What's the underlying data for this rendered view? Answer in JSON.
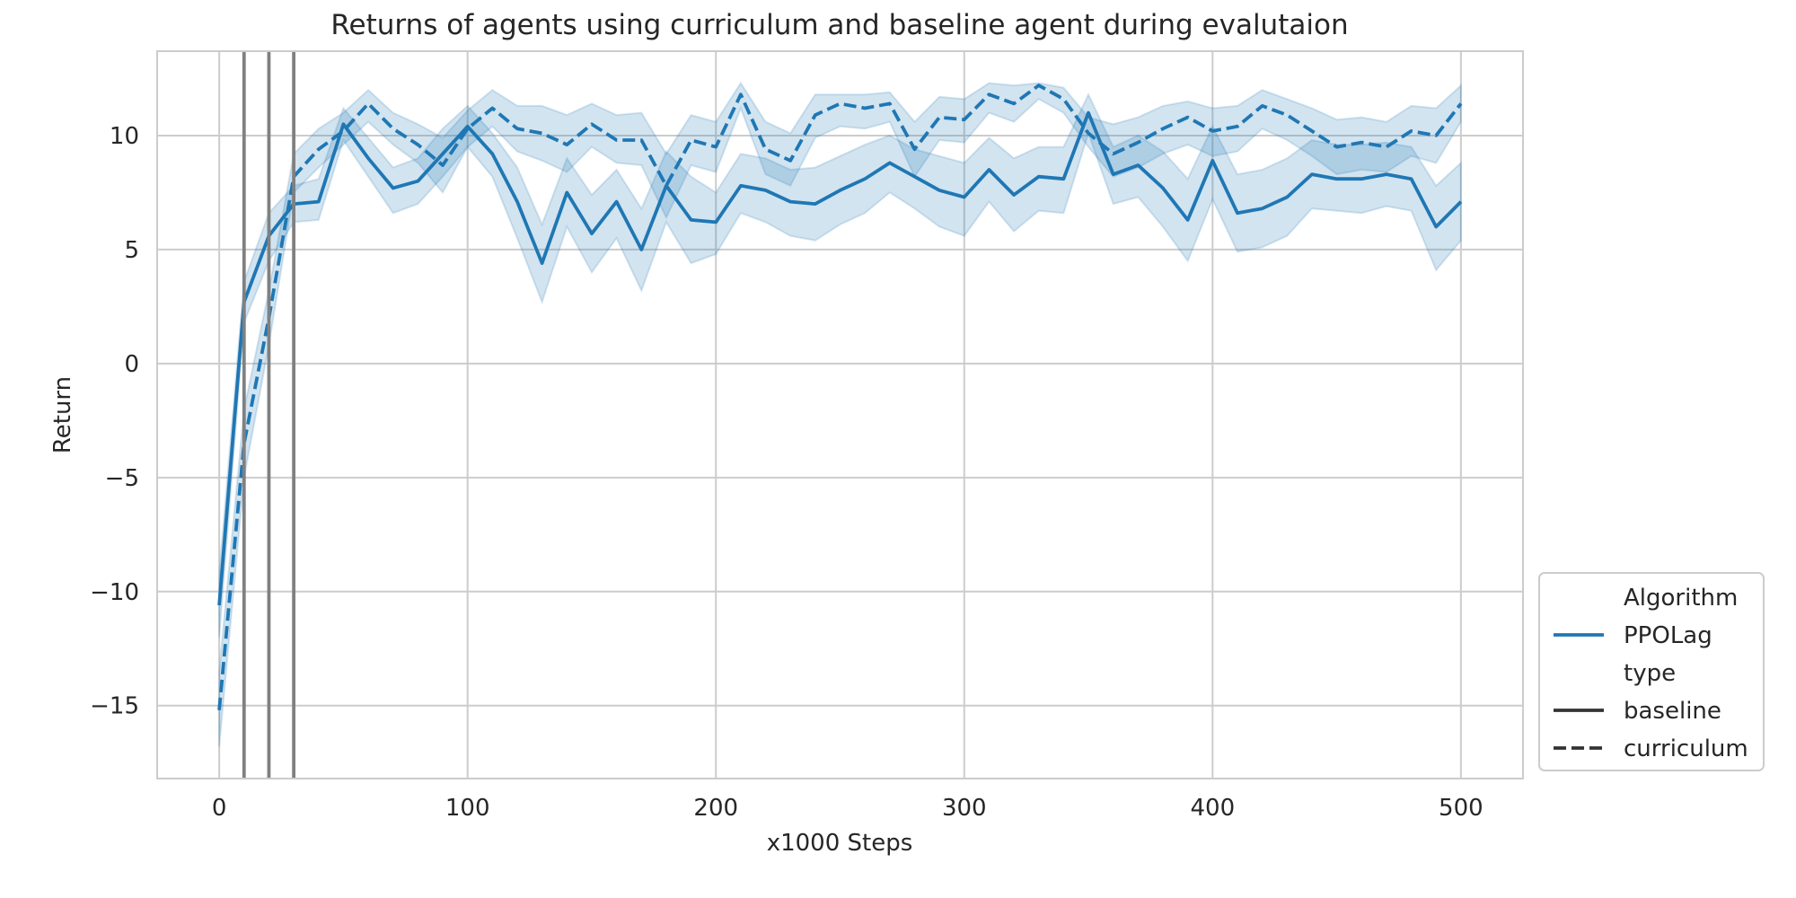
{
  "chart_data": {
    "type": "line",
    "title": "Returns of agents using curriculum and baseline agent during evalutaion",
    "xlabel": "x1000 Steps",
    "ylabel": "Return",
    "xlim": [
      -25,
      525
    ],
    "ylim": [
      -18.2,
      13.7
    ],
    "xticks": [
      0,
      100,
      200,
      300,
      400,
      500
    ],
    "yticks": [
      -15,
      -10,
      -5,
      0,
      5,
      10
    ],
    "tick_labels_x": [
      "0",
      "100",
      "200",
      "300",
      "400",
      "500"
    ],
    "tick_labels_y": [
      "−15",
      "−10",
      "−5",
      "0",
      "5",
      "10"
    ],
    "grid": true,
    "vertical_lines": [
      10,
      20,
      30
    ],
    "vertical_line_color": "#808080",
    "line_color": "#1f77b4",
    "legend": {
      "placement": "lower-right",
      "entries": [
        {
          "kind": "header",
          "text": "Algorithm"
        },
        {
          "kind": "line",
          "style": "solid",
          "color": "#1f77b4",
          "text": "PPOLag"
        },
        {
          "kind": "header",
          "text": "type"
        },
        {
          "kind": "line",
          "style": "solid",
          "color": "#333333",
          "text": "baseline"
        },
        {
          "kind": "line",
          "style": "dashed",
          "color": "#333333",
          "text": "curriculum"
        }
      ]
    },
    "x": [
      0,
      10,
      20,
      30,
      40,
      50,
      60,
      70,
      80,
      90,
      100,
      110,
      120,
      130,
      140,
      150,
      160,
      170,
      180,
      190,
      200,
      210,
      220,
      230,
      240,
      250,
      260,
      270,
      280,
      290,
      300,
      310,
      320,
      330,
      340,
      350,
      360,
      370,
      380,
      390,
      400,
      410,
      420,
      430,
      440,
      450,
      460,
      470,
      480,
      490,
      500
    ],
    "series": [
      {
        "name": "baseline",
        "style": "solid",
        "values": [
          -10.6,
          2.7,
          5.6,
          7.0,
          7.1,
          10.5,
          9.0,
          7.7,
          8.0,
          9.2,
          10.4,
          9.2,
          7.1,
          4.4,
          7.5,
          5.7,
          7.1,
          5.0,
          7.8,
          6.3,
          6.2,
          7.8,
          7.6,
          7.1,
          7.0,
          7.6,
          8.1,
          8.8,
          8.2,
          7.6,
          7.3,
          8.5,
          7.4,
          8.2,
          8.1,
          11.0,
          8.3,
          8.7,
          7.7,
          6.3,
          8.9,
          6.6,
          6.8,
          7.3,
          8.3,
          8.1,
          8.1,
          8.3,
          8.1,
          6.0,
          7.1
        ],
        "lower": [
          -12.0,
          1.8,
          4.5,
          6.2,
          6.3,
          9.8,
          8.2,
          6.6,
          7.0,
          8.2,
          9.5,
          8.2,
          5.5,
          2.7,
          6.0,
          4.0,
          5.5,
          3.2,
          6.2,
          4.4,
          4.8,
          6.6,
          6.2,
          5.6,
          5.4,
          6.1,
          6.6,
          7.5,
          6.8,
          6.0,
          5.6,
          7.1,
          5.8,
          6.7,
          6.6,
          10.1,
          7.0,
          7.3,
          6.0,
          4.5,
          7.2,
          4.9,
          5.1,
          5.6,
          6.8,
          6.7,
          6.6,
          6.9,
          6.7,
          4.1,
          5.4
        ],
        "upper": [
          -9.2,
          3.6,
          6.6,
          7.8,
          8.1,
          11.2,
          9.9,
          8.6,
          9.0,
          10.3,
          11.3,
          10.1,
          8.6,
          6.1,
          9.0,
          7.4,
          8.5,
          6.8,
          9.3,
          8.2,
          7.5,
          9.2,
          9.0,
          8.5,
          8.6,
          9.1,
          9.6,
          10.0,
          9.4,
          9.1,
          8.8,
          9.9,
          9.0,
          9.5,
          9.5,
          11.8,
          9.5,
          10.0,
          9.3,
          8.1,
          10.4,
          8.3,
          8.5,
          9.0,
          9.8,
          9.6,
          9.6,
          9.7,
          9.5,
          7.8,
          8.8
        ]
      },
      {
        "name": "curriculum",
        "style": "dashed",
        "values": [
          -15.2,
          -3.5,
          2.0,
          8.2,
          9.4,
          10.2,
          11.4,
          10.3,
          9.6,
          8.7,
          10.3,
          11.2,
          10.3,
          10.1,
          9.6,
          10.5,
          9.8,
          9.8,
          7.8,
          9.8,
          9.5,
          11.8,
          9.4,
          8.9,
          10.9,
          11.4,
          11.2,
          11.4,
          9.4,
          10.8,
          10.7,
          11.8,
          11.4,
          12.2,
          11.6,
          10.1,
          9.2,
          9.7,
          10.3,
          10.8,
          10.2,
          10.4,
          11.3,
          10.9,
          10.2,
          9.5,
          9.7,
          9.5,
          10.2,
          10.0,
          11.4
        ],
        "lower": [
          -16.8,
          -5.0,
          0.8,
          7.5,
          8.6,
          9.6,
          10.6,
          9.6,
          8.8,
          7.5,
          9.5,
          10.4,
          9.3,
          8.9,
          8.4,
          9.5,
          8.8,
          8.7,
          6.4,
          8.7,
          8.4,
          11.2,
          8.3,
          7.8,
          9.9,
          10.4,
          10.3,
          10.6,
          8.2,
          9.8,
          9.7,
          11.0,
          10.6,
          11.6,
          11.0,
          9.5,
          8.2,
          8.6,
          9.2,
          9.6,
          9.1,
          9.3,
          10.3,
          9.8,
          9.1,
          8.3,
          8.5,
          8.4,
          9.1,
          8.8,
          10.6
        ],
        "upper": [
          -13.5,
          -2.0,
          3.2,
          9.2,
          10.3,
          11.0,
          12.0,
          11.0,
          10.5,
          9.9,
          11.1,
          12.0,
          11.3,
          11.3,
          10.9,
          11.4,
          10.9,
          11.0,
          9.2,
          10.9,
          10.6,
          12.3,
          10.6,
          10.1,
          11.8,
          11.8,
          11.8,
          11.9,
          10.6,
          11.7,
          11.6,
          12.3,
          12.2,
          12.3,
          12.1,
          10.8,
          10.5,
          10.8,
          11.3,
          11.5,
          11.2,
          11.3,
          12.0,
          11.6,
          11.2,
          10.7,
          10.8,
          10.6,
          11.3,
          11.2,
          12.2
        ]
      }
    ]
  }
}
